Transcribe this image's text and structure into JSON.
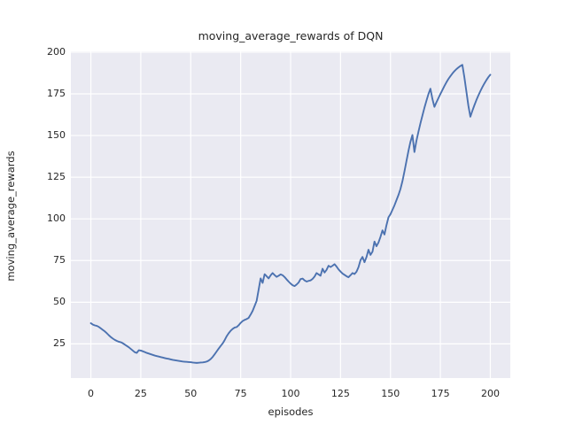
{
  "chart_data": {
    "type": "line",
    "title": "moving_average_rewards of DQN",
    "xlabel": "episodes",
    "ylabel": "moving_average_rewards",
    "xlim": [
      -10,
      210
    ],
    "ylim": [
      4.5,
      200.5
    ],
    "xticks": [
      0,
      25,
      50,
      75,
      100,
      125,
      150,
      175,
      200
    ],
    "yticks": [
      25,
      50,
      75,
      100,
      125,
      150,
      175,
      200
    ],
    "grid": "on",
    "legend": "none",
    "colors": {
      "line": "#4C72B0",
      "plot_background": "#EAEAF2",
      "gridline": "#FFFFFF",
      "text": "#262626",
      "figure_background": "#FFFFFF"
    },
    "series": [
      {
        "name": "moving_average_rewards",
        "x_start": 0,
        "x_step": 1,
        "values": [
          37.4,
          36.6,
          36.1,
          35.8,
          35.2,
          34.3,
          33.4,
          32.5,
          31.4,
          30.2,
          29.1,
          28.2,
          27.4,
          26.8,
          26.3,
          26.0,
          25.4,
          24.6,
          23.8,
          23.0,
          22.0,
          21.0,
          20.0,
          19.6,
          21.2,
          21.0,
          20.6,
          20.1,
          19.6,
          19.2,
          18.8,
          18.4,
          18.0,
          17.7,
          17.4,
          17.1,
          16.8,
          16.5,
          16.2,
          16.0,
          15.7,
          15.4,
          15.2,
          15.0,
          14.8,
          14.6,
          14.4,
          14.3,
          14.2,
          14.1,
          14.0,
          13.8,
          13.7,
          13.6,
          13.7,
          13.8,
          13.9,
          14.1,
          14.4,
          15.0,
          15.9,
          17.2,
          18.8,
          20.5,
          22.2,
          23.8,
          25.3,
          27.3,
          29.6,
          31.4,
          32.9,
          34.0,
          34.8,
          35.1,
          36.2,
          37.6,
          38.7,
          39.4,
          39.9,
          40.6,
          42.6,
          44.8,
          47.8,
          50.8,
          57.5,
          64.3,
          61.6,
          66.8,
          65.6,
          64.3,
          66.1,
          67.5,
          66.3,
          65.2,
          65.9,
          66.7,
          66.2,
          65.1,
          63.7,
          62.4,
          61.2,
          60.2,
          59.7,
          60.6,
          61.8,
          63.9,
          64.2,
          63.1,
          62.4,
          62.8,
          63.1,
          64.0,
          65.4,
          67.5,
          66.7,
          65.9,
          70.1,
          67.8,
          69.4,
          71.9,
          71.1,
          71.9,
          72.8,
          71.4,
          69.7,
          68.4,
          67.2,
          66.4,
          65.6,
          65.0,
          66.2,
          67.5,
          66.9,
          68.3,
          71.0,
          75.2,
          77.2,
          74.0,
          77.1,
          81.5,
          78.4,
          80.3,
          86.4,
          83.6,
          85.8,
          89.2,
          93.1,
          90.6,
          96.2,
          100.9,
          102.8,
          105.4,
          108.1,
          111.2,
          114.3,
          117.9,
          122.6,
          128.4,
          134.6,
          140.7,
          146.2,
          150.3,
          140.1,
          146.8,
          152.2,
          157.3,
          162.0,
          166.6,
          170.8,
          174.8,
          178.1,
          172.0,
          167.2,
          169.9,
          172.4,
          174.9,
          177.3,
          179.7,
          181.9,
          183.9,
          185.6,
          187.2,
          188.6,
          189.8,
          190.8,
          191.7,
          192.4,
          185.0,
          176.5,
          168.0,
          161.3,
          164.8,
          168.1,
          171.2,
          174.0,
          176.6,
          179.0,
          181.2,
          183.2,
          185.0,
          186.5
        ]
      }
    ]
  }
}
